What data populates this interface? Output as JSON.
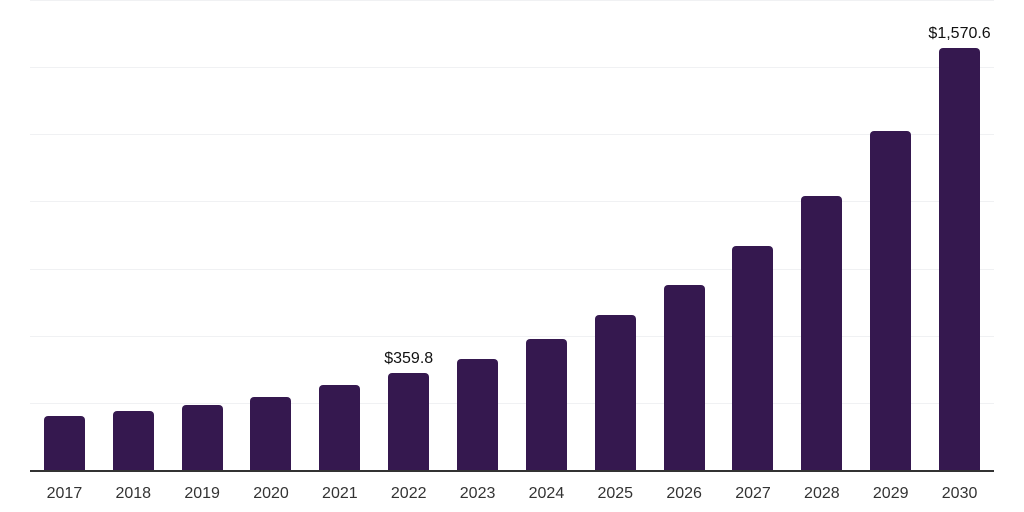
{
  "page": {
    "background_color": "#ffffff"
  },
  "chart_data": {
    "type": "bar",
    "title": "",
    "xlabel": "",
    "ylabel": "",
    "categories": [
      "2017",
      "2018",
      "2019",
      "2020",
      "2021",
      "2022",
      "2023",
      "2024",
      "2025",
      "2026",
      "2027",
      "2028",
      "2029",
      "2030"
    ],
    "values": [
      201,
      221,
      243,
      273,
      317,
      359.8,
      412,
      489,
      578,
      689,
      835,
      1020,
      1263,
      1570.6
    ],
    "point_labels": [
      "",
      "",
      "",
      "",
      "",
      "$359.8",
      "",
      "",
      "",
      "",
      "",
      "",
      "",
      "$1,570.6"
    ],
    "labeled_points": [
      {
        "category": "2022",
        "label": "$359.8",
        "value": 359.8
      },
      {
        "category": "2030",
        "label": "$1,570.6",
        "value": 1570.6
      }
    ],
    "ylim": [
      0,
      1750
    ],
    "gridline_step": 250,
    "grid": "horizontal",
    "legend_position": "none",
    "colors": {
      "bar": "#35184F",
      "axis_line": "#333333",
      "gridline": "#f0f1f3",
      "value_label": "#111111",
      "tick_label": "#333333",
      "background": "#ffffff"
    }
  }
}
